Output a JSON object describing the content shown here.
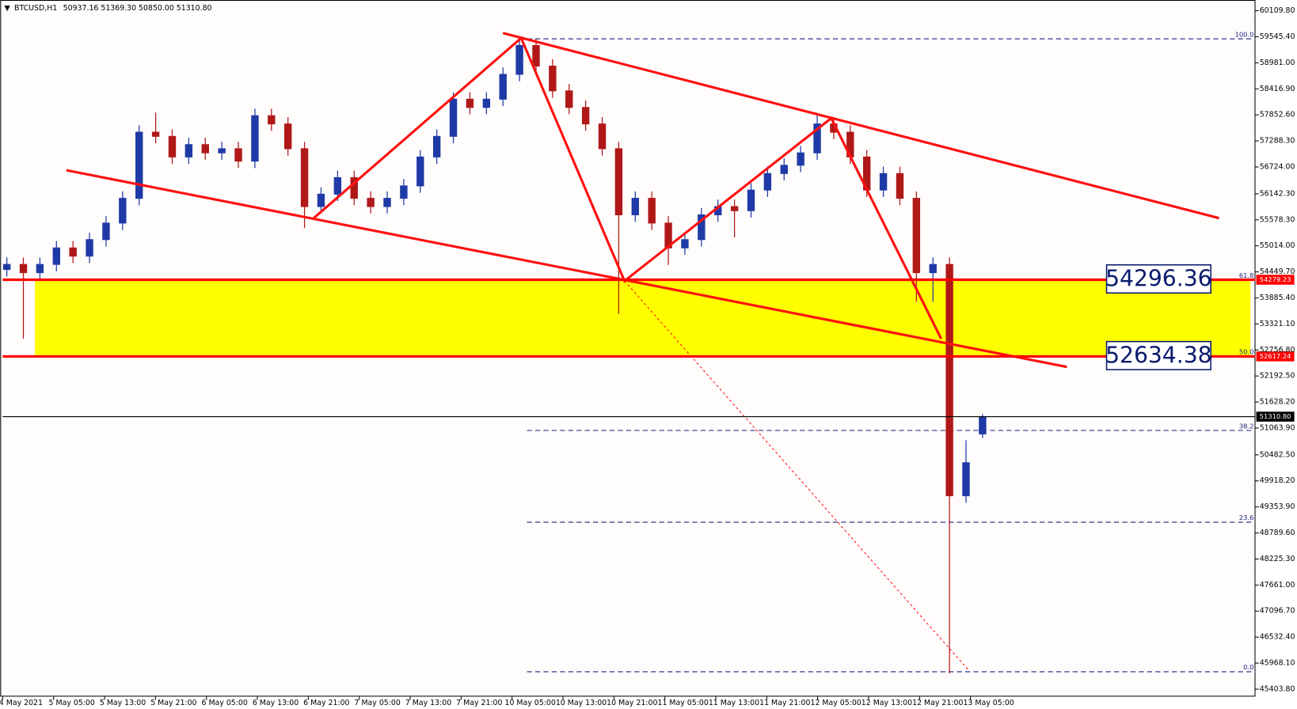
{
  "chart_data": {
    "type": "candlestick",
    "symbol": "BTCUSD,H1",
    "quote": "50937.16 51369.30 50850.00 51310.80",
    "up_color": "#1f3aa6",
    "down_color": "#b01818",
    "ylim": [
      45242.6,
      60342.6
    ],
    "yticks": [
      {
        "value": 60109.8,
        "label": "60109.80"
      },
      {
        "value": 59545.4,
        "label": "59545.40"
      },
      {
        "value": 58981,
        "label": "58981.00"
      },
      {
        "value": 58416.9,
        "label": "58416.90"
      },
      {
        "value": 57852.6,
        "label": "57852.60"
      },
      {
        "value": 57288.3,
        "label": "57288.30"
      },
      {
        "value": 56724,
        "label": "56724.00"
      },
      {
        "value": 56142.3,
        "label": "56142.30"
      },
      {
        "value": 55578.3,
        "label": "55578.30"
      },
      {
        "value": 55014,
        "label": "55014.00"
      },
      {
        "value": 54449.7,
        "label": "54449.70"
      },
      {
        "value": 53885.4,
        "label": "53885.40"
      },
      {
        "value": 53321.1,
        "label": "53321.10"
      },
      {
        "value": 52756.8,
        "label": "52756.80"
      },
      {
        "value": 52192.5,
        "label": "52192.50"
      },
      {
        "value": 51628.2,
        "label": "51628.20"
      },
      {
        "value": 51063.9,
        "label": "51063.90"
      },
      {
        "value": 50482.5,
        "label": "50482.50"
      },
      {
        "value": 49918.2,
        "label": "49918.20"
      },
      {
        "value": 49353.9,
        "label": "49353.90"
      },
      {
        "value": 48789.6,
        "label": "48789.60"
      },
      {
        "value": 48225.3,
        "label": "48225.30"
      },
      {
        "value": 47661,
        "label": "47661.00"
      },
      {
        "value": 47096.7,
        "label": "47096.70"
      },
      {
        "value": 46532.4,
        "label": "46532.40"
      },
      {
        "value": 45968.1,
        "label": "45968.10"
      },
      {
        "value": 45403.8,
        "label": "45403.80"
      }
    ],
    "x_labels": [
      "4 May 2021",
      "5 May 05:00",
      "5 May 13:00",
      "5 May 21:00",
      "6 May 05:00",
      "6 May 13:00",
      "6 May 21:00",
      "7 May 05:00",
      "7 May 13:00",
      "7 May 21:00",
      "10 May 05:00",
      "10 May 13:00",
      "10 May 21:00",
      "11 May 05:00",
      "11 May 13:00",
      "11 May 21:00",
      "12 May 05:00",
      "12 May 13:00",
      "12 May 21:00",
      "13 May 05:00"
    ],
    "open": [
      54500,
      54611,
      54432,
      54611,
      54969,
      54790,
      55149,
      55507,
      56044,
      57477,
      57387,
      56940,
      57208,
      57029,
      57119,
      56850,
      57835,
      57656,
      57119,
      55865,
      56134,
      56492,
      56044,
      55865,
      56044,
      56313,
      56940,
      57387,
      58193,
      58014,
      58193,
      58731,
      59357,
      58910,
      58373,
      58014,
      57656,
      57119,
      55686,
      56044,
      55507,
      54969,
      55149,
      55686,
      55865,
      55775,
      56223,
      56581,
      56760,
      57029,
      57656,
      57477,
      56940,
      56223,
      56581,
      56044,
      54432,
      54611,
      49596,
      50937.16
    ],
    "high": [
      54761,
      54761,
      54761,
      55119,
      55119,
      55299,
      55657,
      56194,
      57627,
      57900,
      57537,
      57358,
      57358,
      57269,
      57269,
      57985,
      57985,
      57806,
      57269,
      56284,
      56642,
      56642,
      56194,
      56194,
      56463,
      57090,
      57537,
      58343,
      58343,
      58343,
      58881,
      59507,
      59507,
      59060,
      58523,
      58164,
      57806,
      57269,
      56194,
      56194,
      55657,
      55299,
      55836,
      56015,
      56015,
      56373,
      56731,
      56910,
      57179,
      57900,
      57806,
      57627,
      57090,
      56731,
      56731,
      56194,
      54761,
      54761,
      50800,
      51369.3
    ],
    "low": [
      54350,
      53000,
      54282,
      54461,
      54640,
      54640,
      54999,
      55357,
      55894,
      57237,
      56790,
      56790,
      56879,
      56879,
      56700,
      56700,
      57506,
      56969,
      55400,
      55715,
      55984,
      55894,
      55715,
      55715,
      55894,
      56163,
      56790,
      57237,
      57864,
      57864,
      58043,
      58581,
      58760,
      58223,
      57864,
      57506,
      56969,
      53537,
      55536,
      55357,
      54600,
      54819,
      54999,
      55536,
      55200,
      55625,
      56073,
      56431,
      56610,
      56879,
      57327,
      56790,
      56073,
      56073,
      55894,
      53800,
      53800,
      45746,
      49446,
      50850
    ],
    "close": [
      54611,
      54432,
      54611,
      54969,
      54790,
      55149,
      55507,
      56044,
      57477,
      57387,
      56940,
      57208,
      57029,
      57119,
      56850,
      57835,
      57656,
      57119,
      55865,
      56134,
      56492,
      56044,
      55865,
      56044,
      56313,
      56940,
      57387,
      58193,
      58014,
      58193,
      58731,
      59357,
      58910,
      58373,
      58014,
      57656,
      57119,
      55686,
      56044,
      55507,
      54969,
      55149,
      55686,
      55865,
      55775,
      56223,
      56581,
      56760,
      57029,
      57656,
      57477,
      56940,
      56223,
      56581,
      56044,
      54432,
      54611,
      49596,
      50313,
      51310.8
    ],
    "price_levels": [
      {
        "value": 54279.23,
        "color": "#ff0000"
      },
      {
        "value": 52617.24,
        "color": "#ff0000"
      },
      {
        "value": 51310.8,
        "label": "51310.80",
        "color": "#000000"
      }
    ],
    "zone_color": "#ffff00",
    "price_boxes": [
      54296.36,
      52634.38
    ],
    "fib_levels": [
      {
        "value": 59501,
        "label": "100.0"
      },
      {
        "value": 54279.23,
        "label": "61.8"
      },
      {
        "value": 52617.24,
        "label": "50.0"
      },
      {
        "value": 51011,
        "label": "38.2"
      },
      {
        "value": 49023,
        "label": "23.6"
      },
      {
        "value": 45781,
        "label": "0.0"
      }
    ]
  }
}
